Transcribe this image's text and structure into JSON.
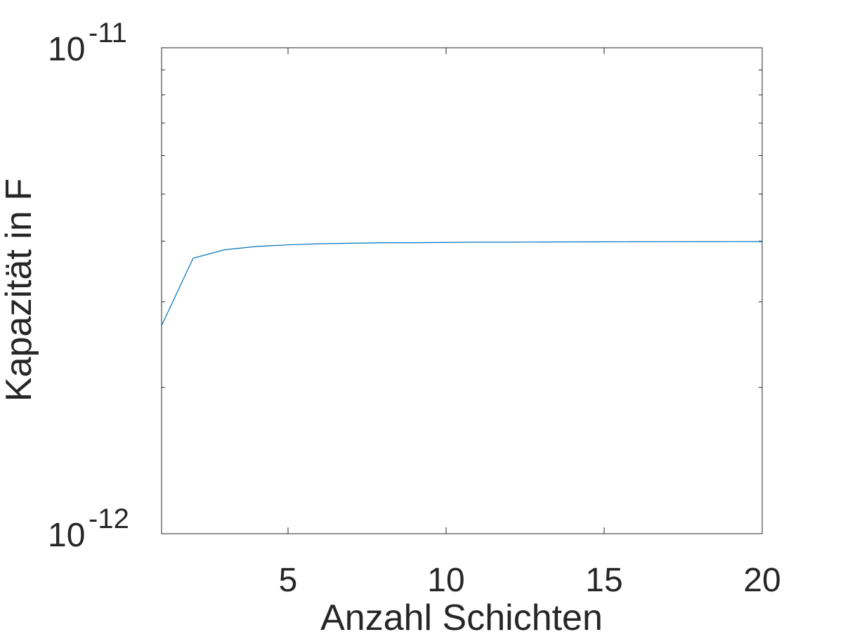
{
  "chart_data": {
    "type": "line",
    "title": "",
    "xlabel": "Anzahl Schichten",
    "ylabel": "Kapazität in F",
    "xlim": [
      1,
      20
    ],
    "ylim": [
      1e-12,
      1e-11
    ],
    "yscale": "log",
    "grid": false,
    "x_ticks": [
      5,
      10,
      15,
      20
    ],
    "x_tick_labels": [
      "5",
      "10",
      "15",
      "20"
    ],
    "y_major_ticks": [
      {
        "value": 1e-11,
        "base": "10",
        "exp": "-11"
      },
      {
        "value": 1e-12,
        "base": "10",
        "exp": "-12"
      }
    ],
    "y_minor_ticks": [
      2e-12,
      3e-12,
      4e-12,
      5e-12,
      6e-12,
      7e-12,
      8e-12,
      9e-12
    ],
    "series": [
      {
        "color": "#0072BD",
        "x": [
          1,
          2,
          3,
          4,
          5,
          6,
          7,
          8,
          9,
          10,
          11,
          12,
          13,
          14,
          15,
          16,
          17,
          18,
          19,
          20
        ],
        "y": [
          2.68e-12,
          3.69e-12,
          3.84e-12,
          3.9e-12,
          3.93e-12,
          3.95e-12,
          3.96e-12,
          3.97e-12,
          3.97e-12,
          3.975e-12,
          3.98e-12,
          3.98e-12,
          3.983e-12,
          3.985e-12,
          3.987e-12,
          3.988e-12,
          3.989e-12,
          3.99e-12,
          3.991e-12,
          3.992e-12
        ]
      }
    ]
  }
}
